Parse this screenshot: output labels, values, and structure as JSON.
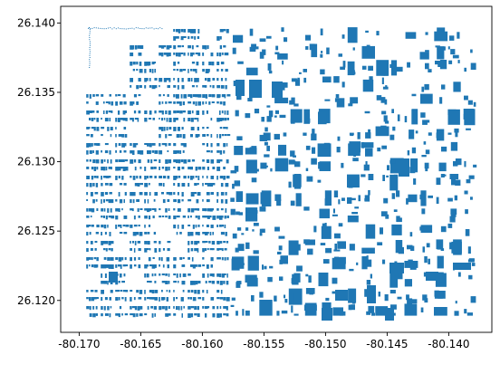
{
  "chart_data": {
    "type": "map",
    "title": "",
    "xlabel": "",
    "ylabel": "",
    "xlim": [
      -80.1715,
      -80.1365
    ],
    "ylim": [
      26.1177,
      26.1412
    ],
    "x_ticks": [
      "-80.170",
      "-80.165",
      "-80.160",
      "-80.155",
      "-80.150",
      "-80.145",
      "-80.140"
    ],
    "x_tick_values": [
      -80.17,
      -80.165,
      -80.16,
      -80.155,
      -80.15,
      -80.145,
      -80.14
    ],
    "y_ticks": [
      "26.120",
      "26.125",
      "26.130",
      "26.135",
      "26.140"
    ],
    "y_tick_values": [
      26.12,
      26.125,
      26.13,
      26.135,
      26.14
    ],
    "grid": false,
    "legend": "none",
    "fill_color": "#1f77b4",
    "data_extent": {
      "x": [
        -80.1695,
        -80.1386
      ],
      "y": [
        26.1189,
        26.1397
      ]
    },
    "features": "building footprint polygons"
  }
}
